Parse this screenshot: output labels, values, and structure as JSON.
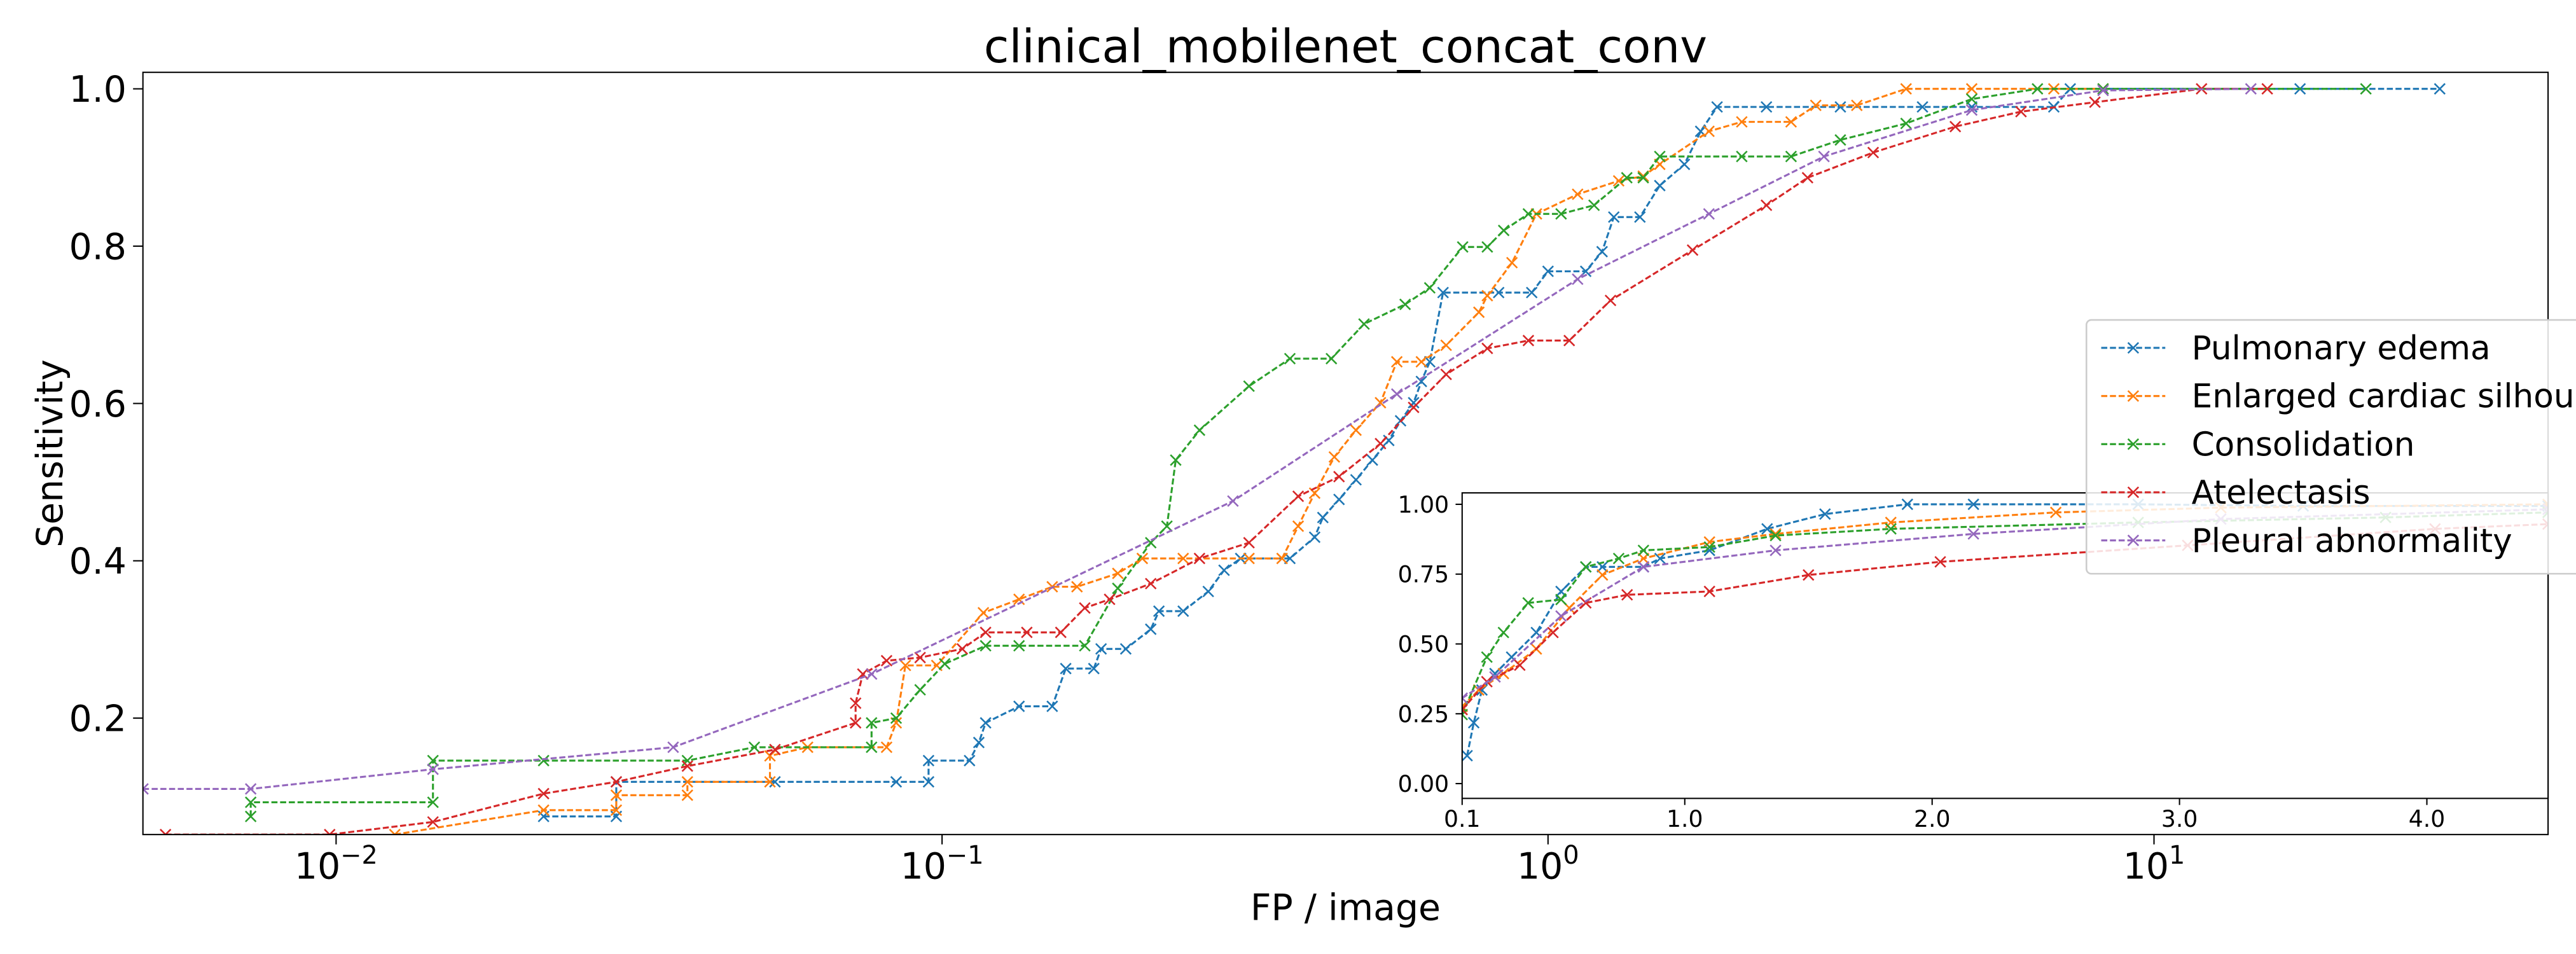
{
  "chart_data": [
    {
      "type": "line",
      "title": "clinical_mobilenet_concat_conv",
      "xlabel": "FP / image",
      "ylabel": "Sensitivity",
      "xscale": "log",
      "xlim": [
        0.0048,
        44.7
      ],
      "ylim": [
        0.052,
        1.021
      ],
      "xticks": [
        {
          "value": 0.01,
          "label": "10",
          "exponent": "−2"
        },
        {
          "value": 0.1,
          "label": "10",
          "exponent": "−1"
        },
        {
          "value": 1,
          "label": "10",
          "exponent": "0"
        },
        {
          "value": 10,
          "label": "10",
          "exponent": "1"
        }
      ],
      "yticks": [
        0.2,
        0.4,
        0.6,
        0.8,
        {
          "value": 1,
          "label": "1.0"
        }
      ],
      "legend": "center right",
      "line_style": "dashed",
      "marker": "x",
      "series": [
        {
          "name": "Pulmonary edema",
          "color": "#1f77b4",
          "x": [
            0.022,
            0.029,
            0.029,
            0.053,
            0.084,
            0.095,
            0.095,
            0.111,
            0.115,
            0.118,
            0.134,
            0.152,
            0.16,
            0.178,
            0.183,
            0.201,
            0.221,
            0.228,
            0.25,
            0.275,
            0.292,
            0.311,
            0.375,
            0.412,
            0.425,
            0.452,
            0.482,
            0.513,
            0.546,
            0.571,
            0.6,
            0.618,
            0.638,
            0.671,
            0.829,
            0.94,
            1.0,
            1.154,
            1.228,
            1.284,
            1.418,
            1.529,
            1.679,
            1.786,
            1.901,
            2.293,
            3.037,
            4.149,
            5.003,
            6.834,
            7.274,
            17.42,
            29.62
          ],
          "values": [
            0.075,
            0.075,
            0.119,
            0.119,
            0.119,
            0.119,
            0.146,
            0.146,
            0.169,
            0.194,
            0.215,
            0.215,
            0.263,
            0.263,
            0.288,
            0.288,
            0.313,
            0.336,
            0.336,
            0.361,
            0.388,
            0.403,
            0.403,
            0.43,
            0.455,
            0.478,
            0.503,
            0.528,
            0.553,
            0.578,
            0.601,
            0.628,
            0.653,
            0.741,
            0.741,
            0.741,
            0.768,
            0.768,
            0.793,
            0.837,
            0.837,
            0.877,
            0.904,
            0.946,
            0.977,
            0.977,
            0.977,
            0.977,
            0.977,
            0.977,
            1.0,
            1.0,
            1.0
          ]
        },
        {
          "name": "Enlarged cardiac silhouette",
          "color": "#ff7f0e",
          "x": [
            0.0125,
            0.022,
            0.029,
            0.029,
            0.038,
            0.038,
            0.052,
            0.052,
            0.06,
            0.081,
            0.084,
            0.087,
            0.098,
            0.117,
            0.134,
            0.152,
            0.167,
            0.195,
            0.214,
            0.25,
            0.321,
            0.364,
            0.387,
            0.412,
            0.444,
            0.482,
            0.529,
            0.563,
            0.618,
            0.679,
            0.769,
            0.794,
            0.872,
            0.957,
            1.119,
            1.308,
            1.436,
            1.529,
            1.843,
            2.088,
            2.518,
            2.766,
            3.233,
            3.898,
            5.003,
            6.834,
            8.241
          ],
          "values": [
            0.052,
            0.083,
            0.083,
            0.102,
            0.102,
            0.119,
            0.119,
            0.152,
            0.163,
            0.163,
            0.194,
            0.267,
            0.267,
            0.334,
            0.351,
            0.367,
            0.367,
            0.384,
            0.403,
            0.403,
            0.403,
            0.403,
            0.444,
            0.486,
            0.532,
            0.566,
            0.601,
            0.653,
            0.653,
            0.674,
            0.716,
            0.737,
            0.779,
            0.841,
            0.866,
            0.883,
            0.889,
            0.904,
            0.946,
            0.958,
            0.958,
            0.979,
            0.979,
            1.0,
            1.0,
            1.0,
            1.0
          ]
        },
        {
          "name": "Consolidation",
          "color": "#2ca02c",
          "x": [
            0.00723,
            0.00723,
            0.01445,
            0.01445,
            0.022,
            0.038,
            0.049,
            0.0765,
            0.0765,
            0.084,
            0.092,
            0.101,
            0.118,
            0.134,
            0.172,
            0.195,
            0.221,
            0.235,
            0.243,
            0.266,
            0.321,
            0.375,
            0.439,
            0.497,
            0.581,
            0.638,
            0.723,
            0.794,
            0.845,
            0.928,
            1.051,
            1.191,
            1.349,
            1.436,
            1.529,
            2.088,
            2.518,
            3.037,
            3.898,
            5.003,
            6.422,
            8.241,
            22.37
          ],
          "values": [
            0.075,
            0.093,
            0.093,
            0.146,
            0.146,
            0.146,
            0.163,
            0.163,
            0.194,
            0.2,
            0.236,
            0.269,
            0.292,
            0.292,
            0.292,
            0.365,
            0.423,
            0.444,
            0.528,
            0.566,
            0.622,
            0.657,
            0.657,
            0.701,
            0.726,
            0.747,
            0.799,
            0.799,
            0.82,
            0.841,
            0.841,
            0.852,
            0.887,
            0.887,
            0.914,
            0.914,
            0.914,
            0.935,
            0.956,
            0.987,
            1.0,
            1.0,
            1.0
          ]
        },
        {
          "name": "Atelectasis",
          "color": "#d62728",
          "x": [
            0.00523,
            0.00976,
            0.01445,
            0.022,
            0.029,
            0.038,
            0.053,
            0.072,
            0.072,
            0.074,
            0.081,
            0.092,
            0.108,
            0.118,
            0.138,
            0.157,
            0.172,
            0.189,
            0.221,
            0.266,
            0.321,
            0.387,
            0.452,
            0.529,
            0.6,
            0.679,
            0.794,
            0.928,
            1.084,
            1.268,
            1.732,
            2.293,
            2.681,
            3.44,
            4.7,
            6.033,
            7.989,
            11.98,
            15.38
          ],
          "values": [
            0.052,
            0.052,
            0.068,
            0.104,
            0.119,
            0.139,
            0.16,
            0.194,
            0.219,
            0.256,
            0.273,
            0.277,
            0.288,
            0.309,
            0.309,
            0.309,
            0.34,
            0.351,
            0.371,
            0.403,
            0.423,
            0.482,
            0.507,
            0.549,
            0.595,
            0.637,
            0.67,
            0.68,
            0.68,
            0.731,
            0.795,
            0.852,
            0.887,
            0.919,
            0.952,
            0.971,
            0.983,
            1.0,
            1.0
          ]
        },
        {
          "name": "Pleural abnormality",
          "color": "#9467bd",
          "x": [
            0.0048,
            0.00723,
            0.01445,
            0.036,
            0.0765,
            0.302,
            0.563,
            1.119,
            1.843,
            2.853,
            5.003,
            8.241,
            14.45
          ],
          "values": [
            0.11,
            0.11,
            0.135,
            0.163,
            0.256,
            0.476,
            0.612,
            0.758,
            0.841,
            0.914,
            0.973,
            0.998,
            1.0
          ]
        }
      ]
    },
    {
      "type": "line",
      "xscale": "linear",
      "xlim": [
        0.1,
        4.49
      ],
      "ylim": [
        -0.053,
        1.041
      ],
      "xticks": [
        0.1,
        {
          "value": 1,
          "label": "1.0"
        },
        {
          "value": 2,
          "label": "2.0"
        },
        {
          "value": 3,
          "label": "3.0"
        },
        {
          "value": 4,
          "label": "4.0"
        }
      ],
      "yticks": [
        {
          "value": 0,
          "label": "0.00"
        },
        0.25,
        {
          "value": 0.5,
          "label": "0.50"
        },
        0.75,
        {
          "value": 1,
          "label": "1.00"
        }
      ],
      "line_style": "dashed",
      "marker": "x",
      "series": [
        {
          "color": "#1f77b4",
          "x": [
            0.12,
            0.147,
            0.18,
            0.233,
            0.3,
            0.4,
            0.5,
            0.6,
            0.667,
            0.833,
            0.9,
            1.1,
            1.333,
            1.567,
            1.9,
            2.167,
            2.833,
            3.5,
            4.49
          ],
          "values": [
            0.1,
            0.218,
            0.335,
            0.394,
            0.453,
            0.541,
            0.688,
            0.776,
            0.776,
            0.776,
            0.806,
            0.835,
            0.912,
            0.965,
            1.0,
            1.0,
            1.0,
            0.994,
            0.994
          ]
        },
        {
          "color": "#ff7f0e",
          "x": [
            0.1,
            0.167,
            0.267,
            0.4,
            0.533,
            0.667,
            0.833,
            1.1,
            1.367,
            1.833,
            2.5,
            3.167,
            4.49
          ],
          "values": [
            0.276,
            0.335,
            0.394,
            0.482,
            0.629,
            0.747,
            0.806,
            0.865,
            0.894,
            0.935,
            0.971,
            0.988,
            1.0
          ]
        },
        {
          "color": "#2ca02c",
          "x": [
            0.1,
            0.2,
            0.267,
            0.367,
            0.5,
            0.6,
            0.733,
            0.833,
            1.1,
            1.367,
            1.833,
            2.833,
            3.833,
            4.49
          ],
          "values": [
            0.247,
            0.453,
            0.541,
            0.647,
            0.659,
            0.776,
            0.806,
            0.835,
            0.847,
            0.888,
            0.912,
            0.935,
            0.953,
            0.971
          ]
        },
        {
          "color": "#d62728",
          "x": [
            0.1,
            0.2,
            0.333,
            0.467,
            0.6,
            0.767,
            1.1,
            1.5,
            2.033,
            3.033,
            4.033,
            4.49
          ],
          "values": [
            0.265,
            0.365,
            0.424,
            0.541,
            0.647,
            0.676,
            0.688,
            0.747,
            0.794,
            0.853,
            0.912,
            0.929
          ]
        },
        {
          "color": "#9467bd",
          "x": [
            0.1,
            0.233,
            0.5,
            0.833,
            1.367,
            2.167,
            3.167,
            4.49
          ],
          "values": [
            0.306,
            0.382,
            0.6,
            0.776,
            0.835,
            0.894,
            0.947,
            0.982
          ]
        }
      ]
    }
  ]
}
